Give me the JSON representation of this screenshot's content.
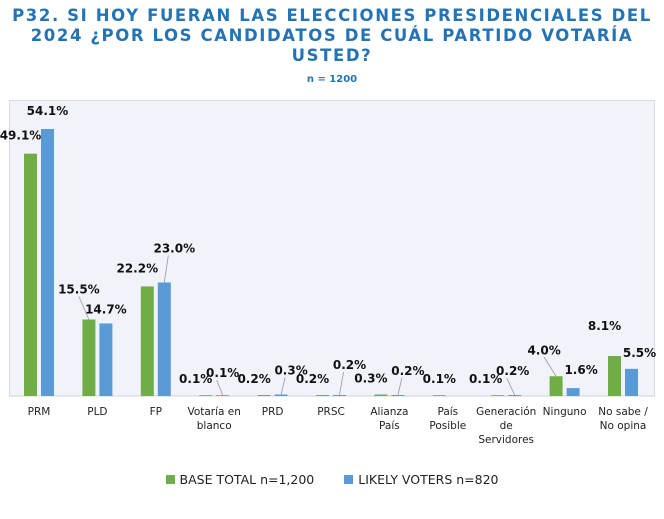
{
  "title_lines": [
    "P32.  SI HOY FUERAN LAS ELECCIONES PRESIDENCIALES DEL",
    "2024 ¿POR LOS CANDIDATOS DE CUÁL PARTIDO VOTARÍA",
    "USTED?"
  ],
  "subtitle": "n = 1200",
  "colors": {
    "base_total": "#70ad47",
    "likely_voters": "#5b9bd5",
    "title": "#2474b5"
  },
  "chart_data": {
    "type": "bar",
    "title": "P32. SI HOY FUERAN LAS ELECCIONES PRESIDENCIALES DEL 2024 ¿POR LOS CANDIDATOS DE CUÁL PARTIDO VOTARÍA USTED?",
    "subtitle": "n = 1200",
    "xlabel": "",
    "ylabel": "",
    "ylim": [
      0,
      60
    ],
    "grid": false,
    "legend_position": "bottom",
    "categories": [
      [
        "PRM"
      ],
      [
        "PLD"
      ],
      [
        "FP"
      ],
      [
        "Votaría en",
        "blanco"
      ],
      [
        "PRD"
      ],
      [
        "PRSC"
      ],
      [
        "Alianza",
        "País"
      ],
      [
        "País",
        "Posible"
      ],
      [
        "Generación",
        "de",
        "Servidores"
      ],
      [
        "Ninguno"
      ],
      [
        "No sabe /",
        "No opina"
      ]
    ],
    "series": [
      {
        "name": "BASE TOTAL n=1,200",
        "color": "#70ad47",
        "values": [
          49.1,
          15.5,
          22.2,
          0.1,
          0.2,
          0.2,
          0.3,
          0.1,
          0.1,
          4.0,
          8.1
        ],
        "labels": [
          "49.1%",
          "15.5%",
          "22.2%",
          "0.1%",
          "0.2%",
          "0.2%",
          "0.3%",
          "0.1%",
          "0.1%",
          "4.0%",
          "8.1%"
        ]
      },
      {
        "name": "LIKELY VOTERS n=820",
        "color": "#5b9bd5",
        "values": [
          54.1,
          14.7,
          23.0,
          0.1,
          0.3,
          0.2,
          0.2,
          null,
          0.2,
          1.6,
          5.5
        ],
        "labels": [
          "54.1%",
          "14.7%",
          "23.0%",
          "0.1%",
          "0.3%",
          "0.2%",
          "0.2%",
          null,
          "0.2%",
          "1.6%",
          "5.5%"
        ]
      }
    ]
  },
  "legend": {
    "items": [
      {
        "label": "BASE TOTAL n=1,200",
        "color": "#70ad47"
      },
      {
        "label": "LIKELY VOTERS n=820",
        "color": "#5b9bd5"
      }
    ]
  }
}
